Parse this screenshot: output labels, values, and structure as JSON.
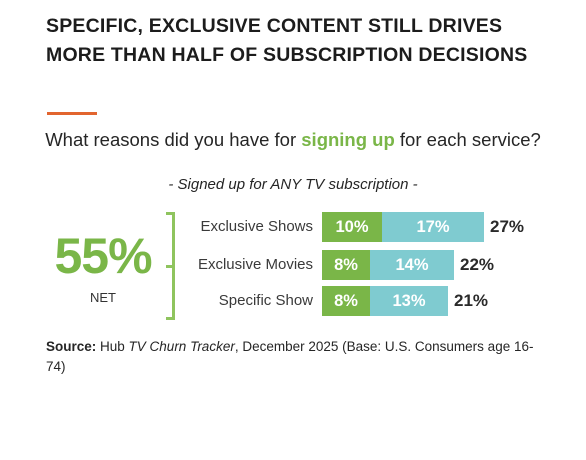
{
  "headline": "SPECIFIC, EXCLUSIVE CONTENT STILL DRIVES MORE THAN HALF OF SUBSCRIPTION DECISIONS",
  "question": {
    "before": "What reasons did you have for ",
    "highlight": "signing up",
    "after": " for each service?"
  },
  "subtitle": "- Signed up for ANY TV subscription -",
  "net": {
    "value": "55%",
    "label": "NET"
  },
  "colors": {
    "exclusive": "#7ab648",
    "specific": "#7fcbd0",
    "accent": "#e2652f"
  },
  "chart_data": {
    "type": "bar",
    "stacked": true,
    "orientation": "horizontal",
    "categories": [
      "Exclusive Shows",
      "Exclusive Movies",
      "Specific Show"
    ],
    "series": [
      {
        "values": [
          10,
          8,
          8
        ],
        "labels": [
          "10%",
          "8%",
          "8%"
        ]
      },
      {
        "values": [
          17,
          14,
          13
        ],
        "labels": [
          "17%",
          "14%",
          "13%"
        ]
      }
    ],
    "totals": [
      27,
      22,
      21
    ],
    "total_labels": [
      "27%",
      "22%",
      "21%"
    ]
  },
  "source": {
    "label": "Source:",
    "pre": " Hub ",
    "italic": "TV Churn Tracker",
    "post": ", December 2025 (Base: U.S. Consumers age 16-74)"
  }
}
